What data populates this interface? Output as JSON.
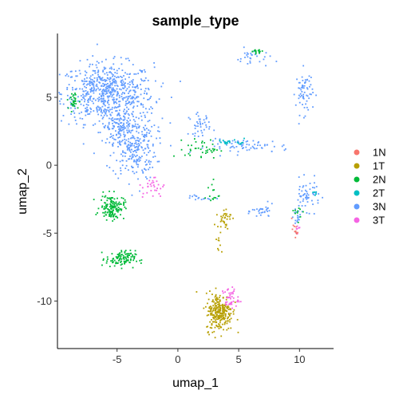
{
  "chart_data": {
    "type": "scatter",
    "title": "sample_type",
    "xlabel": "umap_1",
    "ylabel": "umap_2",
    "xlim": [
      -9.9,
      12.8
    ],
    "ylim": [
      -13.5,
      9.7
    ],
    "xticks": [
      -5,
      0,
      5,
      10
    ],
    "yticks": [
      5,
      0,
      -5,
      -10
    ],
    "grid": false,
    "legend_position": "right",
    "series": [
      {
        "name": "1N",
        "color": "#F8766D",
        "clusters": [
          {
            "cx": 9.6,
            "cy": -4.8,
            "sx": 0.12,
            "sy": 0.25,
            "n": 12
          }
        ]
      },
      {
        "name": "1T",
        "color": "#B79F00",
        "clusters": [
          {
            "cx": 3.4,
            "cy": -10.8,
            "sx": 0.55,
            "sy": 0.7,
            "n": 260
          },
          {
            "cx": 3.8,
            "cy": -3.9,
            "sx": 0.28,
            "sy": 0.35,
            "n": 35
          },
          {
            "cx": 3.4,
            "cy": -6.0,
            "sx": 0.1,
            "sy": 0.35,
            "n": 8
          }
        ]
      },
      {
        "name": "2N",
        "color": "#00BA38",
        "clusters": [
          {
            "cx": -5.4,
            "cy": -3.1,
            "sx": 0.5,
            "sy": 0.45,
            "n": 140
          },
          {
            "cx": -4.7,
            "cy": -6.9,
            "sx": 0.6,
            "sy": 0.3,
            "n": 110
          },
          {
            "cx": -8.6,
            "cy": 4.7,
            "sx": 0.25,
            "sy": 0.35,
            "n": 30
          },
          {
            "cx": 2.0,
            "cy": 1.2,
            "sx": 0.7,
            "sy": 0.35,
            "n": 40
          },
          {
            "cx": 6.5,
            "cy": 8.4,
            "sx": 0.25,
            "sy": 0.08,
            "n": 15
          },
          {
            "cx": 2.8,
            "cy": -2.1,
            "sx": 0.3,
            "sy": 0.5,
            "n": 14
          },
          {
            "cx": 10.0,
            "cy": -3.5,
            "sx": 0.2,
            "sy": 0.3,
            "n": 10
          }
        ]
      },
      {
        "name": "2T",
        "color": "#00BFC4",
        "clusters": [
          {
            "cx": 4.5,
            "cy": 1.7,
            "sx": 0.6,
            "sy": 0.1,
            "n": 20
          },
          {
            "cx": 11.3,
            "cy": -2.1,
            "sx": 0.2,
            "sy": 0.1,
            "n": 5
          }
        ]
      },
      {
        "name": "3N",
        "color": "#619CFF",
        "clusters": [
          {
            "cx": -5.8,
            "cy": 5.3,
            "sx": 1.9,
            "sy": 1.1,
            "n": 650
          },
          {
            "cx": -3.6,
            "cy": 1.5,
            "sx": 0.9,
            "sy": 1.3,
            "n": 280
          },
          {
            "cx": -5.0,
            "cy": 2.8,
            "sx": 0.6,
            "sy": 0.6,
            "n": 80
          },
          {
            "cx": 5.8,
            "cy": 1.4,
            "sx": 1.7,
            "sy": 0.25,
            "n": 70
          },
          {
            "cx": 1.8,
            "cy": 3.0,
            "sx": 0.45,
            "sy": 0.4,
            "n": 40
          },
          {
            "cx": 10.4,
            "cy": 5.4,
            "sx": 0.35,
            "sy": 0.8,
            "n": 65
          },
          {
            "cx": 6.2,
            "cy": 7.9,
            "sx": 0.7,
            "sy": 0.35,
            "n": 30
          },
          {
            "cx": 10.6,
            "cy": -2.2,
            "sx": 0.55,
            "sy": 0.55,
            "n": 55
          },
          {
            "cx": 7.0,
            "cy": -3.4,
            "sx": 0.45,
            "sy": 0.25,
            "n": 30
          },
          {
            "cx": 9.8,
            "cy": -3.9,
            "sx": 0.25,
            "sy": 0.5,
            "n": 18
          },
          {
            "cx": 1.6,
            "cy": -2.4,
            "sx": 0.55,
            "sy": 0.15,
            "n": 15
          }
        ]
      },
      {
        "name": "3T",
        "color": "#F564E3",
        "clusters": [
          {
            "cx": -2.0,
            "cy": -1.6,
            "sx": 0.45,
            "sy": 0.45,
            "n": 30
          },
          {
            "cx": 4.3,
            "cy": -9.8,
            "sx": 0.35,
            "sy": 0.4,
            "n": 45
          },
          {
            "cx": 9.8,
            "cy": -4.6,
            "sx": 0.1,
            "sy": 0.2,
            "n": 6
          }
        ]
      }
    ]
  }
}
